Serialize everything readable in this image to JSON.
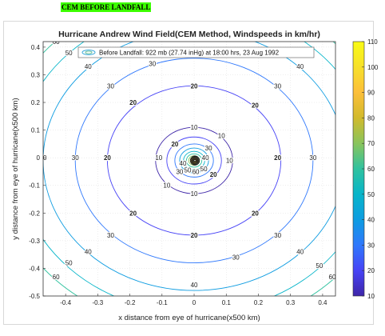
{
  "caption": "CEM BEFORE LANDFALL",
  "chart_data": {
    "type": "contour",
    "title": "Hurricane Andrew Wind Field(CEM Method, Windspeeds in km/hr)",
    "xlabel": "x distance from eye of hurricane(x500 km)",
    "ylabel": "y distance from eye of hurricane(x500 km)",
    "xlim": [
      -0.47,
      0.44
    ],
    "ylim": [
      -0.5,
      0.42
    ],
    "x_ticks": [
      "-0.4",
      "-0.3",
      "-0.2",
      "-0.1",
      "0",
      "0.1",
      "0.2",
      "0.3",
      "0.4"
    ],
    "y_ticks": [
      "-0.5",
      "-0.4",
      "-0.3",
      "-0.2",
      "-0.1",
      "0",
      "0.1",
      "0.2",
      "0.3",
      "0.4"
    ],
    "legend": {
      "position": "top",
      "entries": [
        "Before Landfall: 922 mb (27.74 inHg) at 18:00 hrs, 23 Aug 1992"
      ]
    },
    "grid": true,
    "center": [
      0.0,
      -0.01
    ],
    "contours": [
      {
        "level": 60,
        "radius": 0.61
      },
      {
        "level": 50,
        "radius": 0.55
      },
      {
        "level": 40,
        "radius": 0.47
      },
      {
        "level": 30,
        "radius": 0.37
      },
      {
        "level": 20,
        "radius": 0.27
      },
      {
        "level": 10,
        "radius": 0.12
      },
      {
        "level": 20,
        "radius": 0.085
      },
      {
        "level": 30,
        "radius": 0.06
      },
      {
        "level": 40,
        "radius": 0.045
      },
      {
        "level": 50,
        "radius": 0.033
      },
      {
        "level": 60,
        "radius": 0.024
      },
      {
        "level": 70,
        "radius": 0.017
      },
      {
        "level": 80,
        "radius": 0.012
      },
      {
        "level": 90,
        "radius": 0.008
      },
      {
        "level": 100,
        "radius": 0.005
      }
    ],
    "colorbar": {
      "min": 10,
      "max": 110,
      "ticks": [
        "10",
        "20",
        "30",
        "40",
        "50",
        "60",
        "70",
        "80",
        "90",
        "100",
        "110"
      ],
      "colormap": [
        "#3e26a8",
        "#4743f6",
        "#2f78fc",
        "#0e9ce1",
        "#07b5c9",
        "#30c29f",
        "#89c45c",
        "#d1ba2c",
        "#fcbf3a",
        "#f7e02a",
        "#f9fb15"
      ]
    },
    "contour_labels": [
      {
        "text": "20",
        "x": 0.0,
        "y": 0.26
      },
      {
        "text": "20",
        "x": 0.0,
        "y": -0.28
      },
      {
        "text": "20",
        "x": -0.27,
        "y": 0.0
      },
      {
        "text": "20",
        "x": 0.26,
        "y": 0.0
      },
      {
        "text": "20",
        "x": -0.19,
        "y": 0.2
      },
      {
        "text": "20",
        "x": 0.19,
        "y": 0.19
      },
      {
        "text": "20",
        "x": -0.19,
        "y": -0.2
      },
      {
        "text": "20",
        "x": 0.19,
        "y": -0.2
      },
      {
        "text": "30",
        "x": -0.26,
        "y": 0.26
      },
      {
        "text": "30",
        "x": 0.26,
        "y": 0.26
      },
      {
        "text": "30",
        "x": -0.26,
        "y": -0.28
      },
      {
        "text": "30",
        "x": 0.26,
        "y": -0.28
      },
      {
        "text": "30",
        "x": -0.37,
        "y": 0.0
      },
      {
        "text": "30",
        "x": 0.37,
        "y": 0.0
      },
      {
        "text": "30",
        "x": -0.13,
        "y": 0.34
      },
      {
        "text": "30",
        "x": 0.13,
        "y": -0.36
      },
      {
        "text": "40",
        "x": -0.47,
        "y": 0.0
      },
      {
        "text": "40",
        "x": 0.47,
        "y": 0.0
      },
      {
        "text": "40",
        "x": -0.33,
        "y": 0.33
      },
      {
        "text": "40",
        "x": 0.33,
        "y": 0.33
      },
      {
        "text": "40",
        "x": -0.33,
        "y": -0.34
      },
      {
        "text": "40",
        "x": 0.33,
        "y": -0.34
      },
      {
        "text": "40",
        "x": 0.0,
        "y": -0.46
      },
      {
        "text": "40",
        "x": -0.11,
        "y": 0.44
      },
      {
        "text": "50",
        "x": -0.39,
        "y": 0.38
      },
      {
        "text": "50",
        "x": 0.39,
        "y": -0.39
      },
      {
        "text": "50",
        "x": -0.39,
        "y": -0.38
      },
      {
        "text": "50",
        "x": 0.0,
        "y": -0.56
      },
      {
        "text": "60",
        "x": -0.43,
        "y": 0.42
      },
      {
        "text": "60",
        "x": 0.43,
        "y": -0.43
      },
      {
        "text": "60",
        "x": -0.43,
        "y": -0.43
      },
      {
        "text": "10",
        "x": 0.0,
        "y": 0.11
      },
      {
        "text": "10",
        "x": 0.0,
        "y": -0.13
      },
      {
        "text": "10",
        "x": -0.11,
        "y": 0.0
      },
      {
        "text": "10",
        "x": 0.11,
        "y": -0.01
      },
      {
        "text": "10",
        "x": 0.085,
        "y": 0.08
      },
      {
        "text": "10",
        "x": -0.085,
        "y": -0.1
      },
      {
        "text": "20",
        "x": -0.06,
        "y": 0.05
      },
      {
        "text": "20",
        "x": 0.06,
        "y": -0.06
      },
      {
        "text": "30",
        "x": 0.045,
        "y": 0.035
      },
      {
        "text": "30",
        "x": -0.045,
        "y": -0.05
      },
      {
        "text": "40",
        "x": 0.035,
        "y": 0.0
      },
      {
        "text": "40",
        "x": -0.035,
        "y": -0.02
      },
      {
        "text": "50",
        "x": 0.03,
        "y": -0.04
      },
      {
        "text": "50",
        "x": -0.02,
        "y": -0.045
      },
      {
        "text": "60",
        "x": 0.005,
        "y": -0.05
      }
    ]
  }
}
